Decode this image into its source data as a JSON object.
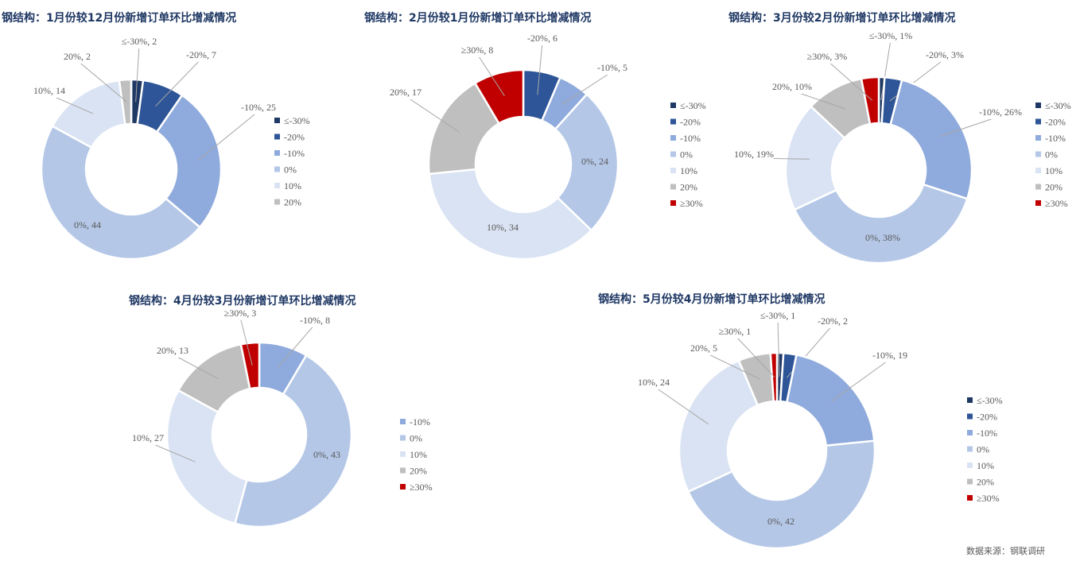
{
  "colors": {
    "le-30": "#1f3864",
    "-20": "#2e5597",
    "-10": "#8faadc",
    "0": "#b4c7e7",
    "10": "#dae3f3",
    "20": "#bfbfbf",
    "ge30": "#c00000",
    "title": "#1f3864",
    "label": "#595959",
    "leader": "#a6a6a6"
  },
  "source": "数据来源：钢联调研",
  "chart_data": [
    {
      "type": "pie",
      "donut": true,
      "legend": "right",
      "title": "钢结构：1月份较12月份新增订单环比增减情况",
      "categories": [
        "≤-30%",
        "-20%",
        "-10%",
        "0%",
        "10%",
        "20%"
      ],
      "color_keys": [
        "le-30",
        "-20",
        "-10",
        "0",
        "10",
        "20"
      ],
      "values": [
        2,
        7,
        25,
        44,
        14,
        2
      ],
      "data_labels": [
        "≤-30%, 2",
        "-20%, 7",
        "-10%, 25",
        "0%, 44",
        "10%, 14",
        "20%, 2"
      ],
      "legend_entries": [
        "≤-30%",
        "-20%",
        "-10%",
        "0%",
        "10%",
        "20%"
      ]
    },
    {
      "type": "pie",
      "donut": true,
      "legend": "right",
      "title": "钢结构：2月份较1月份新增订单环比增减情况",
      "categories": [
        "-20%",
        "-10%",
        "0%",
        "10%",
        "20%",
        "≥30%"
      ],
      "color_keys": [
        "-20",
        "-10",
        "0",
        "10",
        "20",
        "ge30"
      ],
      "values": [
        6,
        5,
        24,
        34,
        17,
        8
      ],
      "data_labels": [
        "-20%, 6",
        "-10%, 5",
        "0%, 24",
        "10%, 34",
        "20%, 17",
        "≥30%, 8"
      ],
      "legend_entries": [
        "≤-30%",
        "-20%",
        "-10%",
        "0%",
        "10%",
        "20%",
        "≥30%"
      ]
    },
    {
      "type": "pie",
      "donut": true,
      "legend": "right",
      "title": "钢结构：3月份较2月份新增订单环比增减情况",
      "categories": [
        "≤-30%",
        "-20%",
        "-10%",
        "0%",
        "10%",
        "20%",
        "≥30%"
      ],
      "color_keys": [
        "le-30",
        "-20",
        "-10",
        "0",
        "10",
        "20",
        "ge30"
      ],
      "values": [
        1,
        3,
        26,
        38,
        19,
        10,
        3
      ],
      "data_labels": [
        "≤-30%, 1%",
        "-20%, 3%",
        "-10%, 26%",
        "0%, 38%",
        "10%, 19%",
        "20%, 10%",
        "≥30%, 3%"
      ],
      "legend_entries": [
        "≤-30%",
        "-20%",
        "-10%",
        "0%",
        "10%",
        "20%",
        "≥30%"
      ]
    },
    {
      "type": "pie",
      "donut": true,
      "legend": "right",
      "title": "钢结构：4月份较3月份新增订单环比增减情况",
      "categories": [
        "-10%",
        "0%",
        "10%",
        "20%",
        "≥30%"
      ],
      "color_keys": [
        "-10",
        "0",
        "10",
        "20",
        "ge30"
      ],
      "values": [
        8,
        43,
        27,
        13,
        3
      ],
      "data_labels": [
        "-10%, 8",
        "0%, 43",
        "10%, 27",
        "20%, 13",
        "≥30%, 3"
      ],
      "legend_entries": [
        "-10%",
        "0%",
        "10%",
        "20%",
        "≥30%"
      ]
    },
    {
      "type": "pie",
      "donut": true,
      "legend": "right",
      "title": "钢结构：5月份较4月份新增订单环比增减情况",
      "categories": [
        "≤-30%",
        "-20%",
        "-10%",
        "0%",
        "10%",
        "20%",
        "≥30%"
      ],
      "color_keys": [
        "le-30",
        "-20",
        "-10",
        "0",
        "10",
        "20",
        "ge30"
      ],
      "values": [
        1,
        2,
        19,
        42,
        24,
        5,
        1
      ],
      "data_labels": [
        "≤-30%, 1",
        "-20%, 2",
        "-10%, 19",
        "0%, 42",
        "10%, 24",
        "20%, 5",
        "≥30%, 1"
      ],
      "legend_entries": [
        "≤-30%",
        "-20%",
        "-10%",
        "0%",
        "10%",
        "20%",
        "≥30%"
      ]
    }
  ]
}
